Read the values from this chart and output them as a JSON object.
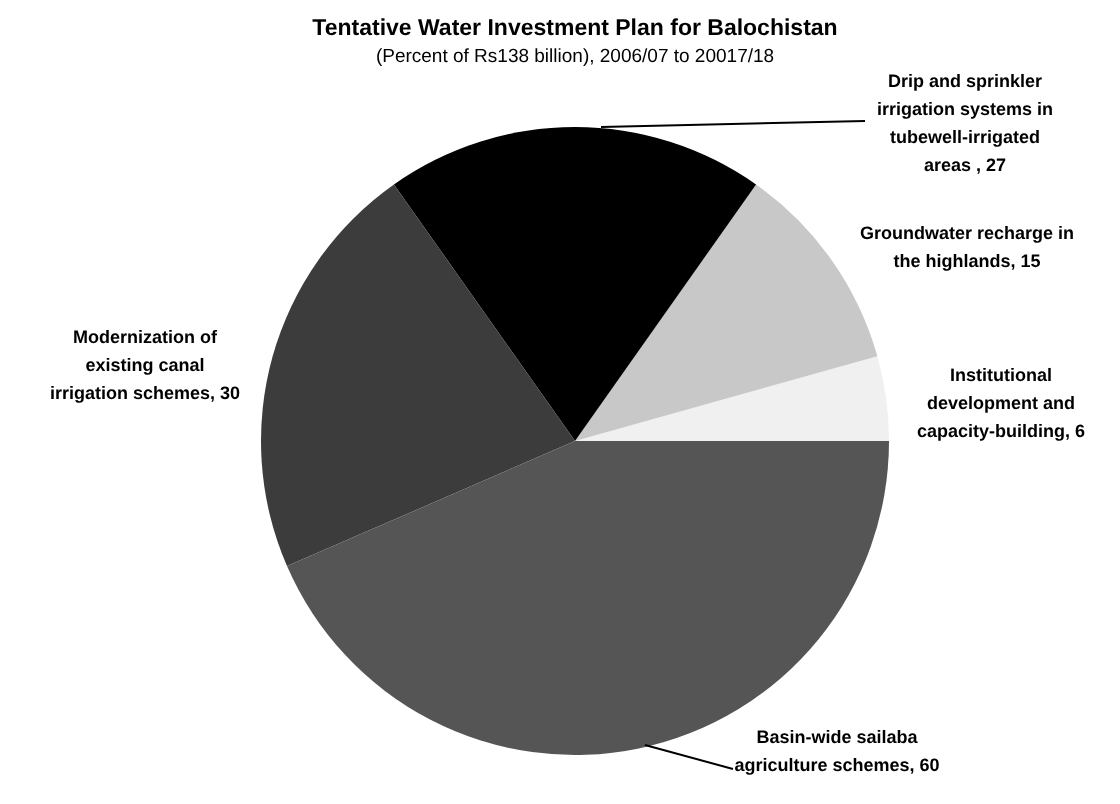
{
  "chart_data": {
    "type": "pie",
    "title": "Tentative Water Investment Plan for Balochistan",
    "subtitle": "(Percent of Rs138 billion), 2006/07 to 20017/18",
    "categories": [
      "Institutional development and capacity-building, 6",
      "Groundwater recharge in the highlands, 15",
      "Drip and sprinkler irrigation systems in tubewell-irrigated areas , 27",
      "Modernization of existing canal irrigation schemes, 30",
      "Basin-wide sailaba agriculture schemes, 60"
    ],
    "values": [
      6,
      15,
      27,
      30,
      60
    ],
    "colors": [
      "#f0f0f0",
      "#c8c8c8",
      "#000000",
      "#3c3c3c",
      "#555555"
    ]
  }
}
